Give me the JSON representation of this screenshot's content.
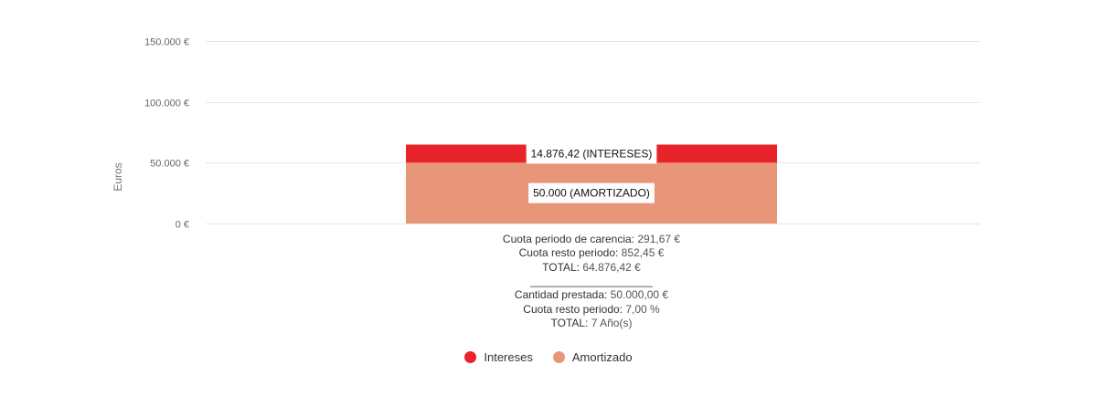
{
  "colors": {
    "intereses": "#e8232a",
    "amortizado": "#e8967a",
    "grid": "#e6e6e6"
  },
  "chart_data": {
    "type": "bar",
    "stacked": true,
    "ylabel": "Euros",
    "ylim": [
      0,
      150000
    ],
    "yticks": [
      {
        "value": 0,
        "label": "0 €"
      },
      {
        "value": 50000,
        "label": "50.000 €"
      },
      {
        "value": 100000,
        "label": "100.000 €"
      },
      {
        "value": 150000,
        "label": "150.000 €"
      }
    ],
    "grid": true,
    "legend_position": "bottom-center",
    "categories": [
      ""
    ],
    "series": [
      {
        "name": "Amortizado",
        "key": "amortizado",
        "values": [
          50000
        ],
        "data_label": "50.000 (AMORTIZADO)"
      },
      {
        "name": "Intereses",
        "key": "intereses",
        "values": [
          14876.42
        ],
        "data_label": "14.876,42 (INTERESES)"
      }
    ],
    "category_text": [
      {
        "key": "Cuota periodo de carencia:",
        "value": "291,67 €"
      },
      {
        "key": "Cuota resto periodo:",
        "value": "852,45 €"
      },
      {
        "key": "TOTAL:",
        "value": "64.876,42 €"
      },
      {
        "key": "____________________",
        "value": ""
      },
      {
        "key": "Cantidad prestada:",
        "value": "50.000,00 €"
      },
      {
        "key": "Cuota resto periodo:",
        "value": "7,00 %"
      },
      {
        "key": "TOTAL:",
        "value": "7 Año(s)"
      }
    ]
  },
  "legend": [
    {
      "label": "Intereses",
      "key": "intereses"
    },
    {
      "label": "Amortizado",
      "key": "amortizado"
    }
  ]
}
